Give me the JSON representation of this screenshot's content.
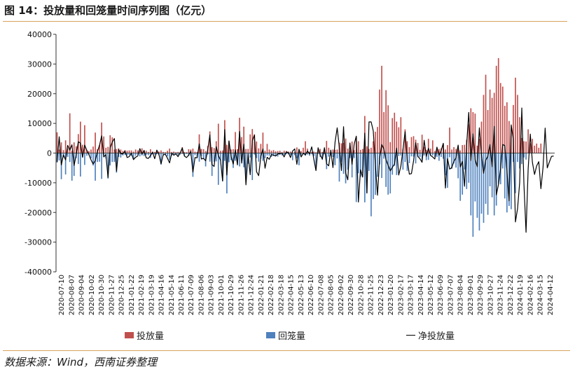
{
  "header": {
    "title": "图 14：投放量和回笼量时间序列图（亿元）"
  },
  "footer": {
    "source": "数据来源：Wind，西南证券整理"
  },
  "colors": {
    "injection": "#c0504d",
    "withdrawal": "#4f81bd",
    "net": "#000000",
    "accent": "#d9a15a"
  },
  "chart_data": {
    "type": "bar",
    "title": "图 14：投放量和回笼量时间序列图（亿元）",
    "xlabel": "",
    "ylabel": "",
    "ylim": [
      -40000,
      40000
    ],
    "yticks": [
      40000,
      30000,
      20000,
      10000,
      0,
      -10000,
      -20000,
      -30000,
      -40000
    ],
    "ytick_labels": [
      "40000",
      "30000",
      "20000",
      "10000",
      "0",
      "-10000",
      "-20000",
      "-30000",
      "-40000"
    ],
    "xtick_labels": [
      "2020-07-10",
      "2020-08-07",
      "2020-09-04",
      "2020-10-02",
      "2020-10-30",
      "2020-11-27",
      "2020-12-25",
      "2021-01-22",
      "2021-02-19",
      "2021-03-19",
      "2021-04-16",
      "2021-05-14",
      "2021-06-11",
      "2021-07-09",
      "2021-08-06",
      "2021-09-03",
      "2021-10-01",
      "2021-10-29",
      "2021-11-26",
      "2021-12-24",
      "2022-01-21",
      "2022-02-18",
      "2022-03-18",
      "2022-04-15",
      "2022-05-13",
      "2022-06-10",
      "2022-07-08",
      "2022-08-05",
      "2022-09-02",
      "2022-09-30",
      "2022-10-28",
      "2022-11-25",
      "2022-12-23",
      "2023-01-20",
      "2023-02-17",
      "2023-03-17",
      "2023-04-14",
      "2023-05-12",
      "2023-06-09",
      "2023-07-07",
      "2023-08-04",
      "2023-09-01",
      "2023-09-29",
      "2023-10-27",
      "2023-11-24",
      "2023-12-22",
      "2024-01-19",
      "2024-02-16",
      "2024-03-15",
      "2024-04-12"
    ],
    "legend": {
      "position": "bottom",
      "entries": [
        "投放量",
        "回笼量",
        "净投放量"
      ]
    },
    "grid": false,
    "series": [
      {
        "name": "投放量",
        "kind": "bar",
        "values": [
          7000,
          1200,
          3600,
          1000,
          4300,
          1600,
          13400,
          800,
          3600,
          2300,
          6400,
          10600,
          2800,
          9400,
          1100,
          700,
          1200,
          2200,
          6900,
          1300,
          2700,
          10300,
          5600,
          1800,
          2100,
          6000,
          5300,
          1200,
          1400,
          1600,
          1200,
          700,
          1000,
          800,
          900,
          900,
          500,
          1200,
          900,
          700,
          1600,
          900,
          800,
          400,
          1300,
          500,
          400,
          600,
          500,
          900,
          400,
          300,
          800,
          1500,
          400,
          500,
          300,
          400,
          300,
          2000,
          300,
          300,
          1300,
          1200,
          1500,
          500,
          400,
          6300,
          1400,
          1300,
          700,
          2400,
          7300,
          2000,
          1700,
          4000,
          9900,
          800,
          900,
          11100,
          2800,
          4000,
          1200,
          1300,
          7100,
          1300,
          11900,
          5400,
          8900,
          1400,
          1400,
          6300,
          8100,
          6300,
          3900,
          1600,
          3100,
          6900,
          800,
          3100,
          1200,
          800,
          1000,
          600,
          700,
          800,
          300,
          800,
          700,
          500,
          500,
          200,
          400,
          1900,
          900,
          700,
          1800,
          4000,
          1500,
          300,
          400,
          500,
          300,
          700,
          1400,
          400,
          900,
          4100,
          1800,
          400,
          1200,
          1100,
          1200,
          3500,
          3300,
          3500,
          4900,
          1500,
          900,
          3900,
          1000,
          5300,
          4000,
          1100,
          1400,
          12500,
          2300,
          1400,
          1800,
          4000,
          7200,
          8800,
          21400,
          29400,
          13800,
          21200,
          16100,
          3700,
          11800,
          13600,
          10600,
          8700,
          12100,
          1400,
          8000,
          4000,
          2000,
          5400,
          5700,
          4500,
          3400,
          1100,
          6200,
          2100,
          1100,
          4800,
          1500,
          4300,
          700,
          1300,
          1400,
          1600,
          3100,
          1200,
          2700,
          8600,
          1200,
          2000,
          1400,
          2400,
          900,
          2700,
          2800,
          4500,
          9700,
          15100,
          13800,
          13300,
          2500,
          4800,
          10600,
          19600,
          26400,
          14500,
          21400,
          18600,
          20300,
          29400,
          32000,
          23600,
          22400,
          15900,
          17100,
          10800,
          8100,
          16200,
          25400,
          19600,
          12100,
          5100,
          4000,
          3900,
          8000,
          3300,
          4800,
          2500,
          3200,
          1800,
          3200
        ]
      },
      {
        "name": "回笼量",
        "kind": "bar",
        "values": [
          -3200,
          -2500,
          -8800,
          -1400,
          -7200,
          -1300,
          -3000,
          -9300,
          -7700,
          -1700,
          -3700,
          -7900,
          -1500,
          -4000,
          -900,
          -700,
          -1800,
          -4200,
          -9300,
          -3000,
          -2900,
          -8700,
          -1300,
          -1800,
          -8600,
          -4200,
          -3000,
          -3000,
          -6600,
          -1300,
          -1500,
          -800,
          -600,
          -800,
          -600,
          -900,
          -2000,
          -900,
          -500,
          -1100,
          -800,
          -1000,
          -600,
          -700,
          -1600,
          -400,
          -500,
          -400,
          -700,
          -3900,
          -800,
          -400,
          -1100,
          -2300,
          -900,
          -800,
          -500,
          -700,
          -500,
          -300,
          -1000,
          -300,
          -1000,
          -900,
          -8000,
          -700,
          -1300,
          -2900,
          -1000,
          -1900,
          -4500,
          -500,
          -2900,
          -7700,
          -2900,
          -2800,
          -10700,
          -2500,
          -9500,
          -2600,
          -13600,
          -3100,
          -2400,
          -5000,
          -2600,
          -2300,
          -4500,
          -2000,
          -4800,
          -8100,
          -3600,
          -1500,
          -9100,
          -500,
          -1700,
          -2900,
          -1900,
          -2600,
          -1700,
          -800,
          -900,
          -1300,
          -1000,
          -1000,
          -1200,
          -600,
          -800,
          -600,
          -400,
          -400,
          -700,
          -2400,
          -700,
          -1700,
          -4100,
          -700,
          -300,
          -900,
          -500,
          -900,
          -400,
          -1000,
          -5600,
          -300,
          -1300,
          -2300,
          -400,
          -5400,
          -1200,
          -800,
          -1300,
          -4100,
          -1800,
          -9600,
          -3000,
          -7000,
          -10200,
          -5600,
          -1700,
          -8200,
          -1700,
          -16500,
          -6800,
          -8000,
          -6800,
          -16600,
          -13400,
          -6000,
          -21300,
          -15500,
          -14100,
          -8000,
          -3800,
          -8400,
          -1900,
          -11400,
          -14000,
          -13600,
          -7300,
          -4300,
          -7400,
          -1000,
          -800,
          -5600,
          -3000,
          -6000,
          -3400,
          -1100,
          -1200,
          -3500,
          -1400,
          -1300,
          -2500,
          -800,
          -2400,
          -2300,
          -800,
          -800,
          -1300,
          -1300,
          -2600,
          -1300,
          -1900,
          -7500,
          -11700,
          -1400,
          -5300,
          -3500,
          -4900,
          -8500,
          -16100,
          -14000,
          -5500,
          -12100,
          -10000,
          -21000,
          -28200,
          -16300,
          -21800,
          -26100,
          -20400,
          -23500,
          -17100,
          -20800,
          -11200,
          -14900,
          -21000,
          -17700,
          -10400,
          -10500,
          -5200,
          -15300,
          -20000,
          -17800,
          -18900,
          -3000,
          -13500,
          -3000,
          -5200,
          -3700,
          -1500,
          -2200
        ]
      },
      {
        "name": "净投放量",
        "kind": "line",
        "values": [
          -2900,
          5500,
          -4000,
          -600,
          -2300,
          2600,
          1000,
          2800,
          -4200,
          -600,
          3800,
          3400,
          -1400,
          2700,
          900,
          -500,
          -2300,
          -3700,
          -2500,
          500,
          2600,
          5800,
          -1300,
          -500,
          -8200,
          1800,
          3700,
          4900,
          -6100,
          1200,
          -200,
          -300,
          700,
          -1500,
          -1200,
          0,
          -2200,
          -1400,
          -1000,
          1500,
          -400,
          900,
          -1600,
          -1800,
          -900,
          300,
          -1900,
          1000,
          -500,
          -3600,
          -600,
          -400,
          -1700,
          -3300,
          -100,
          -700,
          -300,
          -1200,
          100,
          1700,
          -1000,
          -1500,
          -700,
          600,
          -6400,
          -1500,
          -1600,
          3100,
          -2000,
          -1800,
          -2600,
          1100,
          6100,
          -3900,
          -4500,
          2200,
          -800,
          -2400,
          -9400,
          7900,
          -7400,
          4100,
          -1100,
          -3700,
          1100,
          -4000,
          7300,
          -3400,
          3000,
          -10700,
          -300,
          -7300,
          4200,
          6100,
          -6300,
          -7600,
          -1200,
          1400,
          -5100,
          -1400,
          -2100,
          -500,
          -700,
          -1000,
          -300,
          -200,
          0,
          -1300,
          400,
          200,
          -1500,
          700,
          1400,
          -3800,
          1300,
          -1300,
          -100,
          -600,
          700,
          -300,
          2100,
          -2100,
          -5900,
          1800,
          -700,
          -2000,
          1800,
          -3600,
          -4300,
          1000,
          -4900,
          3700,
          8500,
          2000,
          -5900,
          8900,
          -6700,
          -9000,
          3400,
          -3800,
          3000,
          5700,
          -16500,
          -5600,
          -8100,
          6700,
          -13500,
          10500,
          10500,
          7500,
          -4000,
          -14200,
          -1800,
          2900,
          1400,
          -2200,
          -4100,
          -6000,
          -4800,
          -3700,
          1700,
          -7400,
          -4400,
          1100,
          7200,
          -2200,
          -7100,
          -6900,
          -2600,
          3500,
          -1100,
          -1900,
          -3100,
          4300,
          -1100,
          1600,
          -800,
          -1300,
          -2000,
          2000,
          -800,
          900,
          3300,
          -11800,
          -1900,
          -5400,
          -4900,
          -2800,
          -1600,
          2700,
          -4700,
          -2800,
          -11200,
          2600,
          13700,
          -2500,
          6500,
          -2200,
          -4600,
          8500,
          -600,
          -6800,
          -2400,
          -1100,
          2900,
          -4600,
          9000,
          -14100,
          -10600,
          -5300,
          2900,
          2500,
          -6000,
          -16100,
          9500,
          4700,
          -23200,
          -18700,
          -9900,
          15200,
          -10400,
          -26700,
          -5300,
          6400,
          -3100,
          -7200,
          -4300,
          -2900,
          -12000,
          -4900,
          8400,
          -5000,
          -3000,
          -1100,
          -1000
        ]
      }
    ]
  }
}
